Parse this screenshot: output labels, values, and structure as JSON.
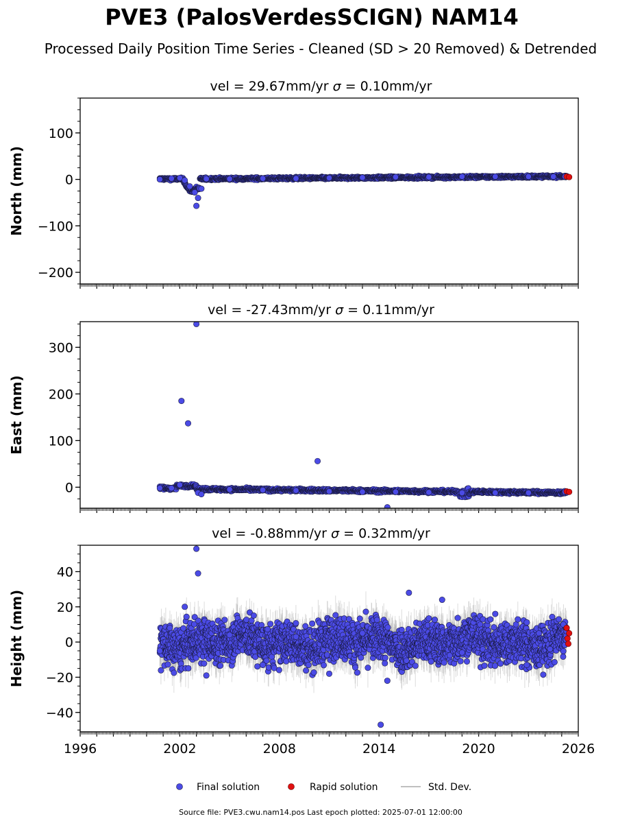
{
  "figure": {
    "title": "PVE3 (PalosVerdesSCIGN) NAM14",
    "subtitle": "Processed Daily Position Time Series - Cleaned (SD > 20 Removed) & Detrended",
    "source_line": "Source file: PVE3.cwu.nam14.pos  Last epoch plotted: 2025-07-01 12:00:00",
    "colors": {
      "final": "#4b4be6",
      "final_edge": "#1a1a40",
      "rapid": "#e01010",
      "stddev": "#9a9a9a",
      "axes": "#000000"
    }
  },
  "legend": {
    "placement": "bottom-center",
    "entries": [
      {
        "label": "Final solution",
        "marker": "circle",
        "color": "#4b4be6"
      },
      {
        "label": "Rapid solution",
        "marker": "circle",
        "color": "#e01010"
      },
      {
        "label": "Std. Dev.",
        "marker": "line",
        "color": "#9a9a9a"
      }
    ]
  },
  "chart_data": [
    {
      "type": "scatter",
      "panel": "north",
      "title_pre": "vel = 29.67mm/yr   ",
      "title_sigma": "σ",
      "title_post": " = 0.10mm/yr",
      "ylabel": "North (mm)",
      "ylim": [
        -225,
        175
      ],
      "yticks": [
        -200,
        -100,
        0,
        100
      ],
      "ytick_labels": [
        "−200",
        "−100",
        "0",
        "100"
      ],
      "xlim": [
        1996,
        2026
      ],
      "xticks": [],
      "xtick_labels": [],
      "series": [
        {
          "name": "Final solution",
          "x": [
            2000.8,
            2001.5,
            2002.0,
            2002.3,
            2002.6,
            2002.9,
            2003.0,
            2003.1,
            2003.3,
            2003.6,
            2005,
            2007,
            2009,
            2011,
            2013,
            2015,
            2017,
            2019,
            2021,
            2023,
            2024.5,
            2025.2
          ],
          "y": [
            0,
            2,
            3,
            -2,
            -15,
            -28,
            -57,
            -40,
            -20,
            1,
            1,
            2,
            2,
            3,
            4,
            5,
            5,
            6,
            6,
            6,
            6,
            6
          ]
        },
        {
          "name": "Rapid solution",
          "x": [
            2025.3,
            2025.45
          ],
          "y": [
            6,
            5
          ]
        }
      ]
    },
    {
      "type": "scatter",
      "panel": "east",
      "title_pre": "vel = -27.43mm/yr   ",
      "title_sigma": "σ",
      "title_post": " = 0.11mm/yr",
      "ylabel": "East (mm)",
      "ylim": [
        -45,
        355
      ],
      "yticks": [
        0,
        100,
        200,
        300
      ],
      "ytick_labels": [
        "0",
        "100",
        "200",
        "300"
      ],
      "xlim": [
        1996,
        2026
      ],
      "xticks": [],
      "xtick_labels": [],
      "series": [
        {
          "name": "Final solution",
          "x": [
            2000.8,
            2001.5,
            2002.0,
            2002.1,
            2002.5,
            2003.0,
            2003.1,
            2003.3,
            2005,
            2007,
            2009,
            2010.3,
            2011,
            2013,
            2014.5,
            2015,
            2017,
            2019.0,
            2021,
            2023,
            2025.2
          ],
          "y": [
            -2,
            -2,
            5,
            185,
            137,
            350,
            -12,
            -15,
            -5,
            -6,
            -7,
            56,
            -9,
            -10,
            -43,
            -10,
            -11,
            -12,
            -12,
            -12,
            -10
          ]
        },
        {
          "name": "Rapid solution",
          "x": [
            2025.3,
            2025.45
          ],
          "y": [
            -9,
            -10
          ]
        }
      ]
    },
    {
      "type": "scatter",
      "panel": "height",
      "title_pre": "vel = -0.88mm/yr   ",
      "title_sigma": "σ",
      "title_post": " = 0.32mm/yr",
      "ylabel": "Height (mm)",
      "ylim": [
        -51,
        55
      ],
      "yticks": [
        -40,
        -20,
        0,
        20,
        40
      ],
      "ytick_labels": [
        "−40",
        "−20",
        "0",
        "20",
        "40"
      ],
      "xlim": [
        1996,
        2026
      ],
      "xticks": [
        1996,
        2002,
        2008,
        2014,
        2020,
        2026
      ],
      "xtick_labels": [
        "1996",
        "2002",
        "2008",
        "2014",
        "2020",
        "2026"
      ],
      "series": [
        {
          "name": "Final solution",
          "x": [
            2000.8,
            2001.4,
            2002.3,
            2003.0,
            2003.1,
            2003.6,
            2005,
            2007,
            2009,
            2011,
            2013,
            2014.1,
            2014.5,
            2015.8,
            2017.8,
            2019,
            2021,
            2022.9,
            2024.3,
            2025.1
          ],
          "y": [
            -5,
            8,
            20,
            53,
            39,
            -19,
            4,
            -13,
            3,
            -18,
            5,
            -47,
            -22,
            28,
            24,
            -6,
            16,
            -13,
            -4,
            10
          ]
        },
        {
          "name": "Rapid solution",
          "x": [
            2025.3,
            2025.35,
            2025.4,
            2025.45
          ],
          "y": [
            8,
            2,
            -1,
            5
          ]
        }
      ]
    }
  ]
}
